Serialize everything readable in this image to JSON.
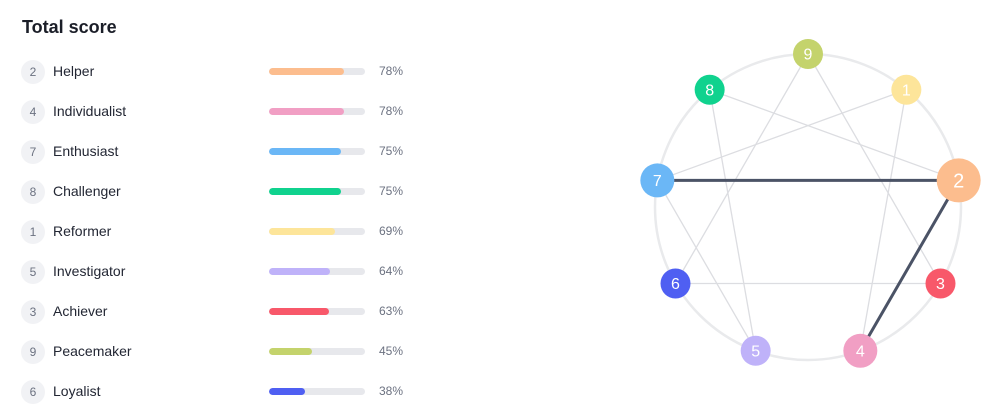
{
  "header": {
    "title": "Total score"
  },
  "scores": [
    {
      "number": "2",
      "name": "Helper",
      "percent": "78%",
      "value": 78,
      "color": "#fcbd8e"
    },
    {
      "number": "4",
      "name": "Individualist",
      "percent": "78%",
      "value": 78,
      "color": "#f19fc4"
    },
    {
      "number": "7",
      "name": "Enthusiast",
      "percent": "75%",
      "value": 75,
      "color": "#6bb7f6"
    },
    {
      "number": "8",
      "name": "Challenger",
      "percent": "75%",
      "value": 75,
      "color": "#10d28e"
    },
    {
      "number": "1",
      "name": "Reformer",
      "percent": "69%",
      "value": 69,
      "color": "#fde59a"
    },
    {
      "number": "5",
      "name": "Investigator",
      "percent": "64%",
      "value": 64,
      "color": "#bfb2f9"
    },
    {
      "number": "3",
      "name": "Achiever",
      "percent": "63%",
      "value": 63,
      "color": "#f8586a"
    },
    {
      "number": "9",
      "name": "Peacemaker",
      "percent": "45%",
      "value": 45,
      "color": "#c4d36c"
    },
    {
      "number": "6",
      "name": "Loyalist",
      "percent": "38%",
      "value": 38,
      "color": "#4f5ff2"
    }
  ],
  "enneagram": {
    "highlighted_connections": [
      [
        "7",
        "2"
      ],
      [
        "2",
        "4"
      ]
    ],
    "highlight_color": "#4b5366",
    "line_color": "#dcdde1",
    "circle_color": "#e9eaec"
  }
}
